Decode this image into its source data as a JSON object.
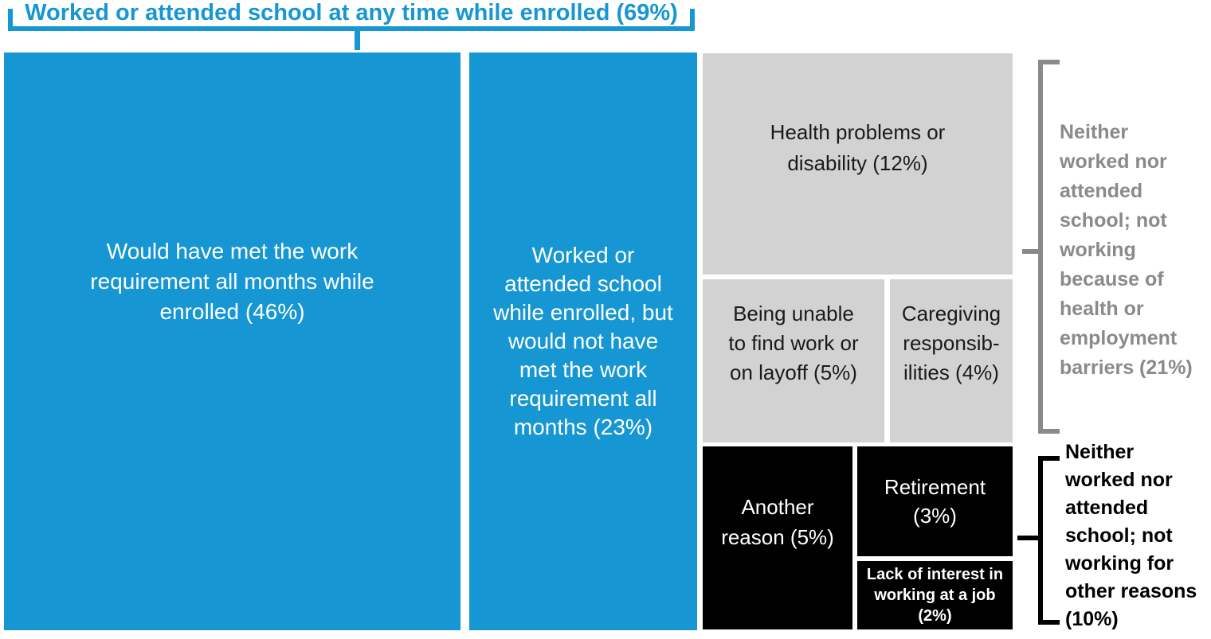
{
  "header": {
    "title": "Worked or attended school at any time while enrolled (69%)"
  },
  "blocks": [
    {
      "id": "would-have-met",
      "label": "Would have met the work\nrequirement all months while\nenrolled (46%)",
      "pct": 46,
      "color": "#1696d2"
    },
    {
      "id": "worked-not-met",
      "label": "Worked or\nattended school\nwhile enrolled, but\nwould not have\nmet the work\nrequirement all\nmonths (23%)",
      "pct": 23,
      "color": "#1696d2"
    },
    {
      "id": "health-problems",
      "label": "Health problems or\ndisability (12%)",
      "pct": 12,
      "color": "#d2d2d2"
    },
    {
      "id": "unable-to-find-work",
      "label": "Being unable\nto find work or\non layoff (5%)",
      "pct": 5,
      "color": "#d2d2d2"
    },
    {
      "id": "caregiving",
      "label": "Caregiving\nresponsib-\nilities (4%)",
      "pct": 4,
      "color": "#d2d2d2"
    },
    {
      "id": "another-reason",
      "label": "Another\nreason (5%)",
      "pct": 5,
      "color": "#000000"
    },
    {
      "id": "retirement",
      "label": "Retirement\n(3%)",
      "pct": 3,
      "color": "#000000"
    },
    {
      "id": "lack-of-interest",
      "label": "Lack of interest in\nworking at a job (2%)",
      "pct": 2,
      "color": "#000000"
    }
  ],
  "side_labels": {
    "barriers": "Neither\nworked nor\nattended\nschool; not\nworking\nbecause of\nhealth or\nemployment\nbarriers (21%)",
    "other": "Neither\nworked nor\nattended\nschool; not\nworking for\nother reasons\n(10%)"
  },
  "colors": {
    "blue": "#1696d2",
    "light_gray": "#d2d2d2",
    "black": "#000000",
    "gray_label": "#8a8a8a",
    "white_text": "#ffffff"
  },
  "chart_data": {
    "type": "treemap",
    "title": "Worked or attended school at any time while enrolled (69%)",
    "legend_position": "none",
    "grid": false,
    "groups": [
      {
        "name": "Worked or attended school at any time while enrolled",
        "value": 69,
        "color": "#1696d2",
        "children": [
          {
            "name": "Would have met the work requirement all months while enrolled",
            "value": 46
          },
          {
            "name": "Worked or attended school while enrolled, but would not have met the work requirement all months",
            "value": 23
          }
        ]
      },
      {
        "name": "Neither worked nor attended school; not working because of health or employment barriers",
        "value": 21,
        "color": "#d2d2d2",
        "children": [
          {
            "name": "Health problems or disability",
            "value": 12
          },
          {
            "name": "Being unable to find work or on layoff",
            "value": 5
          },
          {
            "name": "Caregiving responsibilities",
            "value": 4
          }
        ]
      },
      {
        "name": "Neither worked nor attended school; not working for other reasons",
        "value": 10,
        "color": "#000000",
        "children": [
          {
            "name": "Another reason",
            "value": 5
          },
          {
            "name": "Retirement",
            "value": 3
          },
          {
            "name": "Lack of interest in working at a job",
            "value": 2
          }
        ]
      }
    ]
  }
}
